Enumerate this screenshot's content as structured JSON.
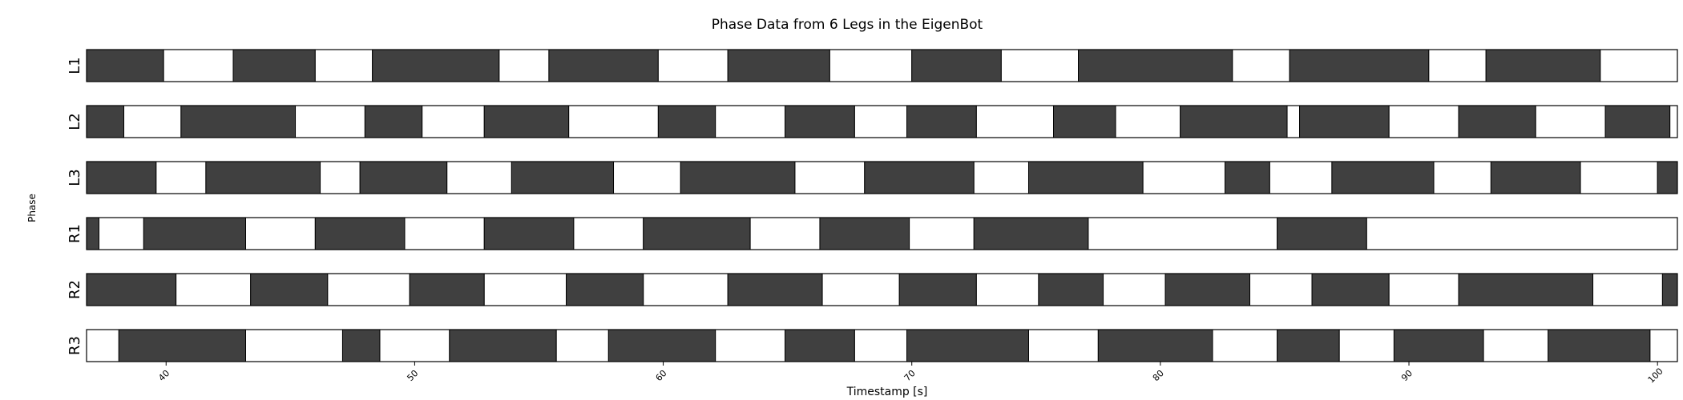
{
  "chart_data": {
    "type": "bar",
    "title": "Phase Data from 6 Legs in the EigenBot",
    "xlabel": "Timestamp [s]",
    "ylabel": "Phase",
    "xlim": [
      36.8,
      100.8
    ],
    "xticks": [
      40,
      50,
      60,
      70,
      80,
      90,
      100
    ],
    "grid": false,
    "colors": {
      "stance": "#404040",
      "swing": "#ffffff",
      "edge": "#000000"
    },
    "series": [
      {
        "name": "L1",
        "intervals": [
          [
            36.8,
            39.9,
            1
          ],
          [
            39.9,
            42.7,
            0
          ],
          [
            42.7,
            46.0,
            1
          ],
          [
            46.0,
            48.3,
            0
          ],
          [
            48.3,
            53.4,
            1
          ],
          [
            53.4,
            55.4,
            0
          ],
          [
            55.4,
            59.8,
            1
          ],
          [
            59.8,
            62.6,
            0
          ],
          [
            62.6,
            66.7,
            1
          ],
          [
            66.7,
            70.0,
            0
          ],
          [
            70.0,
            73.6,
            1
          ],
          [
            73.6,
            76.7,
            0
          ],
          [
            76.7,
            82.9,
            1
          ],
          [
            82.9,
            85.2,
            0
          ],
          [
            85.2,
            90.8,
            1
          ],
          [
            90.8,
            93.1,
            0
          ],
          [
            93.1,
            97.7,
            1
          ],
          [
            97.7,
            100.8,
            0
          ]
        ]
      },
      {
        "name": "L2",
        "intervals": [
          [
            36.8,
            38.3,
            1
          ],
          [
            38.3,
            40.6,
            0
          ],
          [
            40.6,
            45.2,
            1
          ],
          [
            45.2,
            48.0,
            0
          ],
          [
            48.0,
            50.3,
            1
          ],
          [
            50.3,
            52.8,
            0
          ],
          [
            52.8,
            56.2,
            1
          ],
          [
            56.2,
            59.8,
            0
          ],
          [
            59.8,
            62.1,
            1
          ],
          [
            62.1,
            64.9,
            0
          ],
          [
            64.9,
            67.7,
            1
          ],
          [
            67.7,
            69.8,
            0
          ],
          [
            69.8,
            72.6,
            1
          ],
          [
            72.6,
            75.7,
            0
          ],
          [
            75.7,
            78.2,
            1
          ],
          [
            78.2,
            80.8,
            0
          ],
          [
            80.8,
            85.1,
            1
          ],
          [
            85.1,
            85.6,
            0
          ],
          [
            85.6,
            89.2,
            1
          ],
          [
            89.2,
            92.0,
            0
          ],
          [
            92.0,
            95.1,
            1
          ],
          [
            95.1,
            97.9,
            0
          ],
          [
            97.9,
            100.5,
            1
          ],
          [
            100.5,
            100.8,
            0
          ]
        ]
      },
      {
        "name": "L3",
        "intervals": [
          [
            36.8,
            39.6,
            1
          ],
          [
            39.6,
            41.6,
            0
          ],
          [
            41.6,
            46.2,
            1
          ],
          [
            46.2,
            47.8,
            0
          ],
          [
            47.8,
            51.3,
            1
          ],
          [
            51.3,
            53.9,
            0
          ],
          [
            53.9,
            58.0,
            1
          ],
          [
            58.0,
            60.7,
            0
          ],
          [
            60.7,
            65.3,
            1
          ],
          [
            65.3,
            68.1,
            0
          ],
          [
            68.1,
            72.5,
            1
          ],
          [
            72.5,
            74.7,
            0
          ],
          [
            74.7,
            79.3,
            1
          ],
          [
            79.3,
            82.6,
            0
          ],
          [
            82.6,
            84.4,
            1
          ],
          [
            84.4,
            86.9,
            0
          ],
          [
            86.9,
            91.0,
            1
          ],
          [
            91.0,
            93.3,
            0
          ],
          [
            93.3,
            96.9,
            1
          ],
          [
            96.9,
            100.0,
            0
          ],
          [
            100.0,
            100.8,
            1
          ]
        ]
      },
      {
        "name": "R1",
        "intervals": [
          [
            36.8,
            37.3,
            1
          ],
          [
            37.3,
            39.1,
            0
          ],
          [
            39.1,
            43.2,
            1
          ],
          [
            43.2,
            46.0,
            0
          ],
          [
            46.0,
            49.6,
            1
          ],
          [
            49.6,
            52.8,
            0
          ],
          [
            52.8,
            56.4,
            1
          ],
          [
            56.4,
            59.2,
            0
          ],
          [
            59.2,
            63.5,
            1
          ],
          [
            63.5,
            66.3,
            0
          ],
          [
            66.3,
            69.9,
            1
          ],
          [
            69.9,
            72.5,
            0
          ],
          [
            72.5,
            77.1,
            1
          ],
          [
            77.1,
            84.7,
            0
          ],
          [
            84.7,
            88.3,
            1
          ],
          [
            88.3,
            100.8,
            0
          ]
        ]
      },
      {
        "name": "R2",
        "intervals": [
          [
            36.8,
            40.4,
            1
          ],
          [
            40.4,
            43.4,
            0
          ],
          [
            43.4,
            46.5,
            1
          ],
          [
            46.5,
            49.8,
            0
          ],
          [
            49.8,
            52.8,
            1
          ],
          [
            52.8,
            56.1,
            0
          ],
          [
            56.1,
            59.2,
            1
          ],
          [
            59.2,
            62.6,
            0
          ],
          [
            62.6,
            66.4,
            1
          ],
          [
            66.4,
            69.5,
            0
          ],
          [
            69.5,
            72.6,
            1
          ],
          [
            72.6,
            75.1,
            0
          ],
          [
            75.1,
            77.7,
            1
          ],
          [
            77.7,
            80.2,
            0
          ],
          [
            80.2,
            83.6,
            1
          ],
          [
            83.6,
            86.1,
            0
          ],
          [
            86.1,
            89.2,
            1
          ],
          [
            89.2,
            92.0,
            0
          ],
          [
            92.0,
            97.4,
            1
          ],
          [
            97.4,
            100.2,
            0
          ],
          [
            100.2,
            100.8,
            1
          ]
        ]
      },
      {
        "name": "R3",
        "intervals": [
          [
            36.8,
            38.1,
            0
          ],
          [
            38.1,
            43.2,
            1
          ],
          [
            43.2,
            47.1,
            0
          ],
          [
            47.1,
            48.6,
            1
          ],
          [
            48.6,
            51.4,
            0
          ],
          [
            51.4,
            55.7,
            1
          ],
          [
            55.7,
            57.8,
            0
          ],
          [
            57.8,
            62.1,
            1
          ],
          [
            62.1,
            64.9,
            0
          ],
          [
            64.9,
            67.7,
            1
          ],
          [
            67.7,
            69.8,
            0
          ],
          [
            69.8,
            74.7,
            1
          ],
          [
            74.7,
            77.5,
            0
          ],
          [
            77.5,
            82.1,
            1
          ],
          [
            82.1,
            84.7,
            0
          ],
          [
            84.7,
            87.2,
            1
          ],
          [
            87.2,
            89.4,
            0
          ],
          [
            89.4,
            93.0,
            1
          ],
          [
            93.0,
            95.6,
            0
          ],
          [
            95.6,
            99.7,
            1
          ],
          [
            99.7,
            100.8,
            0
          ]
        ]
      }
    ]
  }
}
